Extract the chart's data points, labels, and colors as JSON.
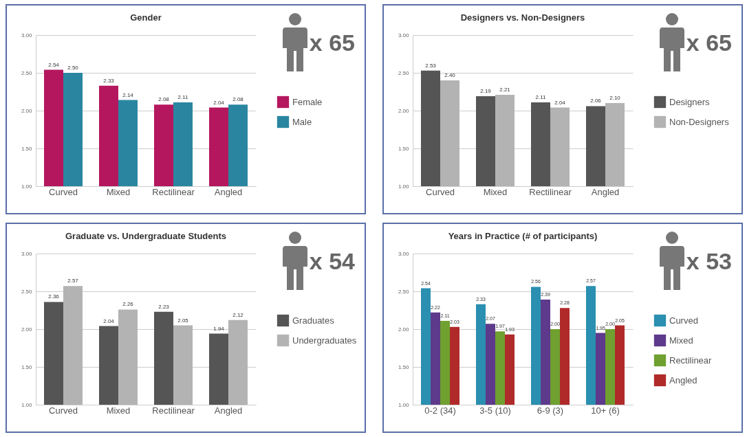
{
  "chart_data": [
    {
      "type": "bar",
      "title": "Gender",
      "categories": [
        "Curved",
        "Mixed",
        "Rectilinear",
        "Angled"
      ],
      "series": [
        {
          "name": "Female",
          "color": "#b5175e",
          "values": [
            2.54,
            2.33,
            2.08,
            2.04
          ],
          "value_labels": [
            "2.54",
            "2.33",
            "2.08",
            "2.04"
          ]
        },
        {
          "name": "Male",
          "color": "#2a86a0",
          "values": [
            2.5,
            2.14,
            2.11,
            2.08
          ],
          "value_labels": [
            "2.50",
            "2.14",
            "2.11",
            "2.08"
          ]
        }
      ],
      "ylim": [
        1,
        3
      ],
      "yticks": [
        {
          "value": 1,
          "label": "1.00"
        },
        {
          "value": 1.5,
          "label": "1.50"
        },
        {
          "value": 2,
          "label": "2.00"
        },
        {
          "value": 2.5,
          "label": "2.50"
        },
        {
          "value": 3,
          "label": "3.00"
        }
      ],
      "grid": "y",
      "legend": "right",
      "annotations": [
        "x 65"
      ]
    },
    {
      "type": "bar",
      "title": "Designers vs. Non-Designers",
      "categories": [
        "Curved",
        "Mixed",
        "Rectilinear",
        "Angled"
      ],
      "series": [
        {
          "name": "Designers",
          "color": "#555555",
          "values": [
            2.53,
            2.19,
            2.11,
            2.06
          ],
          "value_labels": [
            "2.53",
            "2.19",
            "2.11",
            "2.06"
          ]
        },
        {
          "name": "Non-Designers",
          "color": "#b3b3b3",
          "values": [
            2.4,
            2.21,
            2.04,
            2.1
          ],
          "value_labels": [
            "2.40",
            "2.21",
            "2.04",
            "2.10"
          ]
        }
      ],
      "ylim": [
        1,
        3
      ],
      "yticks": [
        {
          "value": 1,
          "label": "1.00"
        },
        {
          "value": 1.5,
          "label": "1.50"
        },
        {
          "value": 2,
          "label": "2.00"
        },
        {
          "value": 2.5,
          "label": "2.50"
        },
        {
          "value": 3,
          "label": "3.00"
        }
      ],
      "grid": "y",
      "legend": "right",
      "annotations": [
        "x 65"
      ]
    },
    {
      "type": "bar",
      "title": "Graduate vs. Undergraduate Students",
      "categories": [
        "Curved",
        "Mixed",
        "Rectilinear",
        "Angled"
      ],
      "series": [
        {
          "name": "Graduates",
          "color": "#555555",
          "values": [
            2.36,
            2.04,
            2.23,
            1.94
          ],
          "value_labels": [
            "2.36",
            "2.04",
            "2.23",
            "1.94"
          ]
        },
        {
          "name": "Undergraduates",
          "color": "#b3b3b3",
          "values": [
            2.57,
            2.26,
            2.05,
            2.12
          ],
          "value_labels": [
            "2.57",
            "2.26",
            "2.05",
            "2.12"
          ]
        }
      ],
      "ylim": [
        1,
        3
      ],
      "yticks": [
        {
          "value": 1,
          "label": "1.00"
        },
        {
          "value": 1.5,
          "label": "1.50"
        },
        {
          "value": 2,
          "label": "2.00"
        },
        {
          "value": 2.5,
          "label": "2.50"
        },
        {
          "value": 3,
          "label": "3.00"
        }
      ],
      "grid": "y",
      "legend": "right",
      "annotations": [
        "x 54"
      ]
    },
    {
      "type": "bar",
      "title": "Years in Practice (# of participants)",
      "categories": [
        "0-2 (34)",
        "3-5 (10)",
        "6-9 (3)",
        "10+ (6)"
      ],
      "series": [
        {
          "name": "Curved",
          "color": "#2a8fb0",
          "values": [
            2.54,
            2.33,
            2.56,
            2.57
          ],
          "value_labels": [
            "2.54",
            "2.33",
            "2.56",
            "2.57"
          ]
        },
        {
          "name": "Mixed",
          "color": "#5e3a8c",
          "values": [
            2.22,
            2.07,
            2.39,
            1.95
          ],
          "value_labels": [
            "2.22",
            "2.07",
            "2.39",
            "1.95"
          ]
        },
        {
          "name": "Rectilinear",
          "color": "#6fa030",
          "values": [
            2.11,
            1.97,
            2.0,
            2.0
          ],
          "value_labels": [
            "2.11",
            "1.97",
            "2.00",
            "2.00"
          ]
        },
        {
          "name": "Angled",
          "color": "#b02a2a",
          "values": [
            2.03,
            1.93,
            2.28,
            2.05
          ],
          "value_labels": [
            "2.03",
            "1.93",
            "2.28",
            "2.05"
          ]
        }
      ],
      "ylim": [
        1,
        3
      ],
      "yticks": [
        {
          "value": 1,
          "label": "1.00"
        },
        {
          "value": 1.5,
          "label": "1.50"
        },
        {
          "value": 2,
          "label": "2.00"
        },
        {
          "value": 2.5,
          "label": "2.50"
        },
        {
          "value": 3,
          "label": "3.00"
        }
      ],
      "grid": "y",
      "legend": "right",
      "annotations": [
        "x 53"
      ]
    }
  ]
}
